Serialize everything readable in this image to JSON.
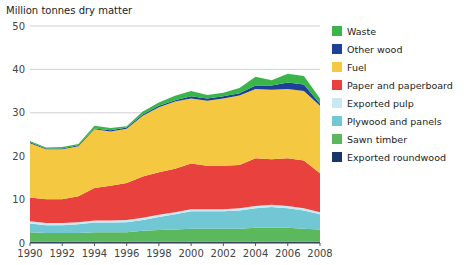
{
  "chart_data": {
    "type": "area",
    "stacked": true,
    "ylabel": "Million tonnes dry matter",
    "x": [
      1990,
      1991,
      1992,
      1993,
      1994,
      1995,
      1996,
      1997,
      1998,
      1999,
      2000,
      2001,
      2002,
      2003,
      2004,
      2005,
      2006,
      2007,
      2008
    ],
    "series": [
      {
        "name": "Exported roundwood",
        "color": "#1a3668",
        "values": [
          0.3,
          0.3,
          0.3,
          0.3,
          0.3,
          0.3,
          0.3,
          0.3,
          0.3,
          0.3,
          0.3,
          0.3,
          0.3,
          0.3,
          0.3,
          0.3,
          0.3,
          0.3,
          0.3
        ]
      },
      {
        "name": "Sawn timber",
        "color": "#5cb85c",
        "values": [
          2.2,
          2.0,
          2.0,
          2.0,
          2.2,
          2.2,
          2.2,
          2.5,
          2.7,
          2.8,
          3.0,
          3.0,
          3.0,
          3.0,
          3.2,
          3.2,
          3.2,
          3.0,
          2.8
        ]
      },
      {
        "name": "Plywood and panels",
        "color": "#72c7d4",
        "values": [
          2.0,
          1.8,
          1.8,
          2.0,
          2.2,
          2.2,
          2.3,
          2.5,
          3.0,
          3.5,
          4.0,
          4.0,
          4.0,
          4.2,
          4.5,
          4.8,
          4.5,
          4.2,
          3.5
        ]
      },
      {
        "name": "Exported pulp",
        "color": "#c8e8f4",
        "values": [
          0.5,
          0.5,
          0.5,
          0.5,
          0.5,
          0.5,
          0.5,
          0.5,
          0.5,
          0.5,
          0.5,
          0.5,
          0.5,
          0.5,
          0.5,
          0.5,
          0.5,
          0.5,
          0.5
        ]
      },
      {
        "name": "Paper and paperboard",
        "color": "#e8413e",
        "values": [
          5.5,
          5.5,
          5.5,
          6.0,
          7.5,
          8.0,
          8.5,
          9.5,
          9.8,
          10.0,
          10.5,
          10.0,
          10.0,
          10.0,
          11.0,
          10.5,
          11.0,
          11.0,
          9.0
        ]
      },
      {
        "name": "Fuel",
        "color": "#f5c842",
        "values": [
          12.5,
          11.5,
          11.5,
          11.5,
          13.5,
          12.5,
          12.5,
          14.0,
          15.0,
          15.5,
          15.0,
          15.0,
          15.5,
          16.0,
          16.0,
          16.0,
          16.0,
          16.0,
          15.5
        ]
      },
      {
        "name": "Other wood",
        "color": "#1f4099",
        "values": [
          0.2,
          0.2,
          0.2,
          0.2,
          0.2,
          0.3,
          0.3,
          0.3,
          0.3,
          0.3,
          0.5,
          0.5,
          0.5,
          0.5,
          0.8,
          1.0,
          1.5,
          1.5,
          0.5
        ]
      },
      {
        "name": "Waste",
        "color": "#3ab54a",
        "values": [
          0.3,
          0.2,
          0.3,
          0.3,
          0.6,
          0.5,
          0.3,
          0.7,
          0.8,
          1.0,
          1.2,
          0.8,
          0.8,
          1.2,
          2.0,
          1.2,
          2.0,
          2.0,
          1.2
        ]
      }
    ],
    "xlim": [
      1990,
      2008
    ],
    "xticks": [
      1990,
      1992,
      1994,
      1996,
      1998,
      2000,
      2002,
      2004,
      2006,
      2008
    ],
    "ylim": [
      0,
      50
    ],
    "yticks": [
      0,
      10,
      20,
      30,
      40,
      50
    ],
    "grid": true,
    "legend": "right"
  }
}
